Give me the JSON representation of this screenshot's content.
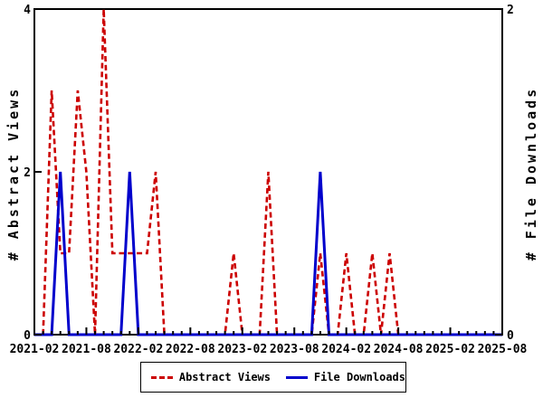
{
  "chart_data": {
    "type": "line",
    "title": "",
    "background": "#ffffff",
    "grid": false,
    "x_months": [
      "2021-02",
      "2021-03",
      "2021-04",
      "2021-05",
      "2021-06",
      "2021-07",
      "2021-08",
      "2021-09",
      "2021-10",
      "2021-11",
      "2021-12",
      "2022-01",
      "2022-02",
      "2022-03",
      "2022-04",
      "2022-05",
      "2022-06",
      "2022-07",
      "2022-08",
      "2022-09",
      "2022-10",
      "2022-11",
      "2022-12",
      "2023-01",
      "2023-02",
      "2023-03",
      "2023-04",
      "2023-05",
      "2023-06",
      "2023-07",
      "2023-08",
      "2023-09",
      "2023-10",
      "2023-11",
      "2023-12",
      "2024-01",
      "2024-02",
      "2024-03",
      "2024-04",
      "2024-05",
      "2024-06",
      "2024-07",
      "2024-08",
      "2024-09",
      "2024-10",
      "2024-11",
      "2024-12",
      "2025-01",
      "2025-02",
      "2025-03",
      "2025-04",
      "2025-05",
      "2025-06",
      "2025-07",
      "2025-08"
    ],
    "x_tick_labels": [
      "2021-02",
      "2021-08",
      "2022-02",
      "2022-08",
      "2023-02",
      "2023-08",
      "2024-02",
      "2024-08",
      "2025-02",
      "2025-08"
    ],
    "x_major_tick_every": 6,
    "left_axis": {
      "label": "# Abstract Views",
      "min": 0,
      "max": 4,
      "ticks": [
        0,
        2,
        4
      ]
    },
    "right_axis": {
      "label": "# File Downloads",
      "min": 0,
      "max": 2,
      "ticks": [
        0,
        2
      ]
    },
    "series": [
      {
        "name": "Abstract Views",
        "axis": "left",
        "color": "#cc0000",
        "line_style": "dashed",
        "values": [
          0,
          0,
          3,
          1,
          1,
          3,
          2,
          0,
          4,
          1,
          1,
          1,
          1,
          1,
          2,
          0,
          0,
          0,
          0,
          0,
          0,
          0,
          0,
          1,
          0,
          0,
          0,
          2,
          0,
          0,
          0,
          0,
          0,
          1,
          0,
          0,
          1,
          0,
          0,
          1,
          0,
          1,
          0,
          0,
          0,
          0,
          0,
          0,
          0,
          0,
          0,
          0,
          0,
          0,
          0
        ]
      },
      {
        "name": "File Downloads",
        "axis": "right",
        "color": "#0000cc",
        "line_style": "solid",
        "values": [
          0,
          0,
          0,
          1,
          0,
          0,
          0,
          0,
          0,
          0,
          0,
          1,
          0,
          0,
          0,
          0,
          0,
          0,
          0,
          0,
          0,
          0,
          0,
          0,
          0,
          0,
          0,
          0,
          0,
          0,
          0,
          0,
          0,
          1,
          0,
          0,
          0,
          0,
          0,
          0,
          0,
          0,
          0,
          0,
          0,
          0,
          0,
          0,
          0,
          0,
          0,
          0,
          0,
          0,
          0
        ]
      }
    ],
    "legend": {
      "position": "bottom-center",
      "entries": [
        "Abstract Views",
        "File Downloads"
      ]
    },
    "axis_color": "#000000"
  }
}
